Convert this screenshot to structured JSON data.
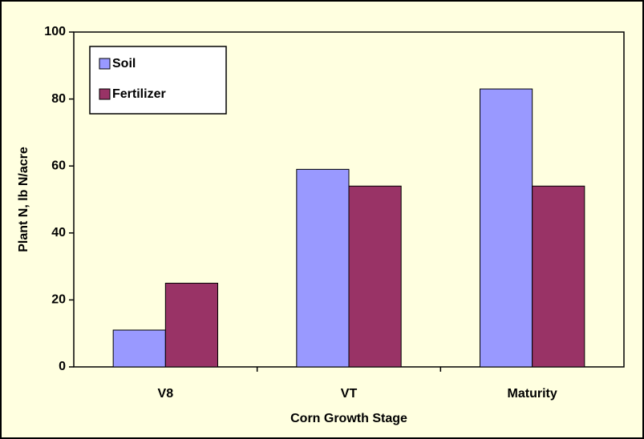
{
  "chart_data": {
    "type": "bar",
    "xlabel": "Corn Growth Stage",
    "ylabel": "Plant N, lb N/acre",
    "categories": [
      "V8",
      "VT",
      "Maturity"
    ],
    "series": [
      {
        "name": "Soil",
        "color": "#9999ff",
        "values": [
          11,
          59,
          83
        ]
      },
      {
        "name": "Fertilizer",
        "color": "#993366",
        "values": [
          25,
          54,
          54
        ]
      }
    ],
    "ylim": [
      0,
      100
    ],
    "yticks": [
      0,
      20,
      40,
      60,
      80,
      100
    ],
    "grid": false,
    "legend": "top-left"
  }
}
